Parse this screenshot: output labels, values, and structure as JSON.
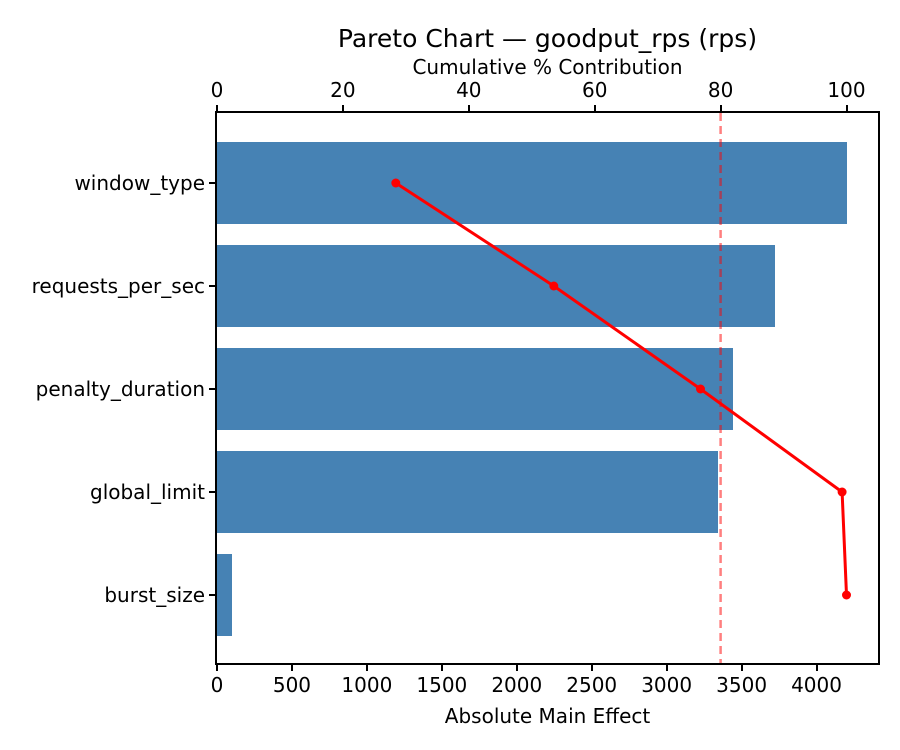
{
  "chart_data": {
    "type": "bar",
    "subtype": "pareto",
    "orientation": "horizontal",
    "title": "Pareto Chart — goodput_rps (rps)",
    "xlabel": "Absolute Main Effect",
    "top_xlabel": "Cumulative % Contribution",
    "categories": [
      "window_type",
      "requests_per_sec",
      "penalty_duration",
      "global_limit",
      "burst_size"
    ],
    "series": [
      {
        "name": "Absolute Main Effect",
        "type": "bar",
        "values": [
          4200,
          3720,
          3440,
          3340,
          100
        ]
      },
      {
        "name": "Cumulative % Contribution",
        "type": "line",
        "values": [
          28.4,
          53.5,
          76.8,
          99.3,
          100.0
        ]
      }
    ],
    "bottom_axis": {
      "ticks": [
        0,
        500,
        1000,
        1500,
        2000,
        2500,
        3000,
        3500,
        4000
      ],
      "range": [
        0,
        4410
      ]
    },
    "top_axis": {
      "ticks": [
        0,
        20,
        40,
        60,
        80,
        100
      ],
      "range": [
        0,
        105
      ]
    },
    "reference_line": {
      "axis": "top",
      "value": 80,
      "style": "dashed"
    },
    "grid": false,
    "legend_position": "none",
    "colors": {
      "bar": "#4682B4",
      "line": "#FF0000",
      "reference_line": "#FF0000",
      "axis": "#000000",
      "background": "#FFFFFF"
    }
  }
}
